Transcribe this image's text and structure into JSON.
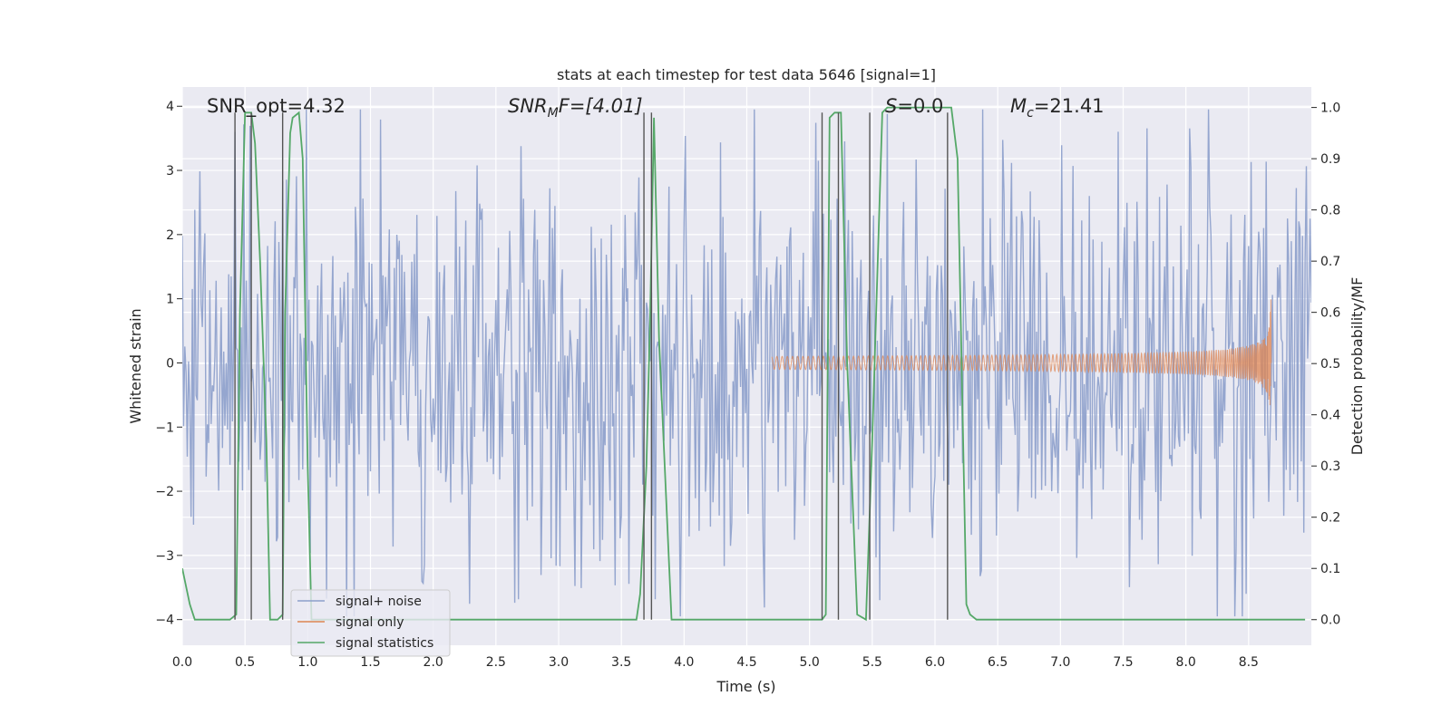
{
  "chart_data": {
    "type": "line",
    "title": "stats at each timestep for test data 5646 [signal=1]",
    "xlabel": "Time (s)",
    "ylabel": "Whitened strain",
    "y2label": "Detection probability/MF",
    "xlim": [
      0,
      9.0
    ],
    "ylim": [
      -4.4,
      4.3
    ],
    "y2lim": [
      -0.05,
      1.04
    ],
    "xticks": [
      "0.0",
      "0.5",
      "1.0",
      "1.5",
      "2.0",
      "2.5",
      "3.0",
      "3.5",
      "4.0",
      "4.5",
      "5.0",
      "5.5",
      "6.0",
      "6.5",
      "7.0",
      "7.5",
      "8.0",
      "8.5"
    ],
    "yticks": [
      "4",
      "3",
      "2",
      "1",
      "0",
      "−1",
      "−2",
      "−3",
      "−4"
    ],
    "y2ticks": [
      "1.0",
      "0.9",
      "0.8",
      "0.7",
      "0.6",
      "0.5",
      "0.4",
      "0.3",
      "0.2",
      "0.1",
      "0.0"
    ],
    "grid": true,
    "legend_position": "lower-left",
    "annotations": {
      "snr_opt": "SNR_opt=4.32",
      "snr_mf_base": "SNR",
      "snr_mf_sub": "M",
      "snr_mf_rest": "F=[4.01]",
      "s_base": "S",
      "s_rest": "=0.0",
      "mc_base": "M",
      "mc_sub": "c",
      "mc_rest": "=21.41"
    },
    "series": [
      {
        "name": "signal+ noise",
        "color": "#8c9fcb",
        "style": "noise",
        "amplitude": 1.6,
        "n_points": 900
      },
      {
        "name": "signal only",
        "color": "#dd8452",
        "style": "chirp",
        "start": 4.7,
        "end": 8.68,
        "peak_amplitude": 0.95
      },
      {
        "name": "signal statistics",
        "color": "#55a868",
        "axis": "right",
        "x": [
          0.0,
          0.06,
          0.1,
          0.2,
          0.3,
          0.38,
          0.43,
          0.46,
          0.5,
          0.55,
          0.58,
          0.62,
          0.67,
          0.7,
          0.72,
          0.76,
          0.8,
          0.82,
          0.86,
          0.88,
          0.93,
          0.96,
          1.0,
          1.03,
          1.06,
          1.1,
          1.5,
          2.0,
          2.5,
          3.0,
          3.5,
          3.62,
          3.65,
          3.7,
          3.73,
          3.76,
          3.8,
          3.9,
          4.5,
          5.0,
          5.07,
          5.1,
          5.13,
          5.16,
          5.2,
          5.25,
          5.3,
          5.38,
          5.45,
          5.5,
          5.58,
          5.62,
          6.0,
          6.05,
          6.1,
          6.13,
          6.18,
          6.25,
          6.28,
          6.33,
          7.0,
          8.0,
          8.5,
          8.95
        ],
        "y": [
          0.1,
          0.03,
          0.0,
          0.0,
          0.0,
          0.0,
          0.01,
          0.6,
          0.99,
          0.99,
          0.93,
          0.7,
          0.35,
          0.0,
          0.0,
          0.0,
          0.01,
          0.6,
          0.95,
          0.98,
          0.99,
          0.9,
          0.3,
          0.0,
          0.0,
          0.0,
          0.0,
          0.0,
          0.0,
          0.0,
          0.0,
          0.0,
          0.05,
          0.3,
          0.6,
          0.98,
          0.55,
          0.0,
          0.0,
          0.0,
          0.0,
          0.0,
          0.01,
          0.98,
          0.99,
          0.99,
          0.5,
          0.01,
          0.0,
          0.35,
          0.99,
          1.0,
          1.0,
          1.0,
          1.0,
          1.0,
          0.9,
          0.03,
          0.01,
          0.0,
          0.0,
          0.0,
          0.0,
          0.0
        ]
      }
    ],
    "vertical_markers": {
      "color": "#555555",
      "times": [
        0.42,
        0.55,
        0.8,
        3.68,
        3.74,
        5.1,
        5.23,
        5.48,
        6.1
      ]
    }
  }
}
